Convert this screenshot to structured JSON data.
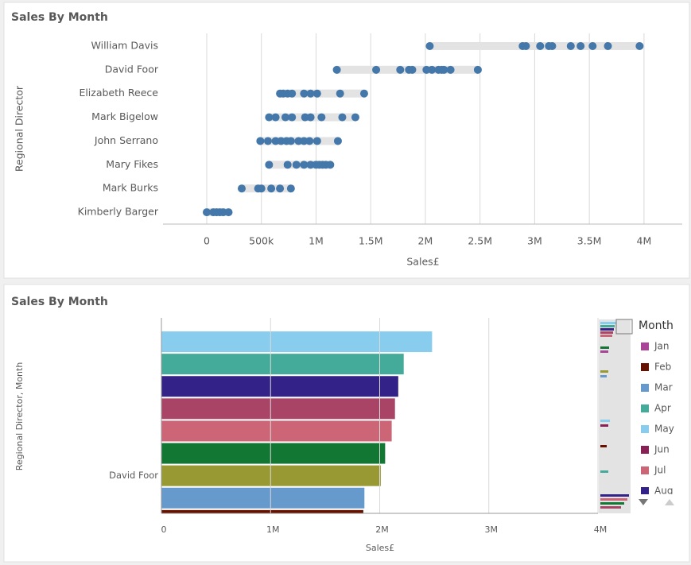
{
  "chart_data": [
    {
      "type": "dot-range",
      "title": "Sales By Month",
      "x_label": "Sales£",
      "y_label": "Regional Director",
      "color": "#4477aa",
      "range_color": "#e3e3e3",
      "categories": [
        "William Davis",
        "David Foor",
        "Elizabeth Reece",
        "Mark Bigelow",
        "John Serrano",
        "Mary Fikes",
        "Mark Burks",
        "Kimberly Barger"
      ],
      "values": [
        [
          2040000,
          2890000,
          2920000,
          3050000,
          3130000,
          3160000,
          3330000,
          3420000,
          3530000,
          3670000,
          3960000
        ],
        [
          1190000,
          1550000,
          1770000,
          1850000,
          1880000,
          2010000,
          2060000,
          2120000,
          2150000,
          2170000,
          2230000,
          2480000
        ],
        [
          670000,
          700000,
          740000,
          780000,
          890000,
          950000,
          1010000,
          1220000,
          1440000
        ],
        [
          570000,
          630000,
          720000,
          780000,
          900000,
          950000,
          1050000,
          1240000,
          1360000
        ],
        [
          490000,
          560000,
          630000,
          680000,
          730000,
          770000,
          840000,
          890000,
          940000,
          1010000,
          1200000
        ],
        [
          570000,
          740000,
          820000,
          890000,
          950000,
          1000000,
          1030000,
          1060000,
          1090000,
          1130000
        ],
        [
          320000,
          470000,
          500000,
          590000,
          670000,
          770000
        ],
        [
          0,
          60000,
          90000,
          120000,
          150000,
          200000
        ]
      ],
      "xlim": [
        -400000,
        4350000
      ],
      "xticks": [
        0,
        {
          "value": 500000,
          "label": "500k"
        },
        {
          "value": 1000000,
          "label": "1M"
        },
        {
          "value": 1500000,
          "label": "1.5M"
        },
        {
          "value": 2000000,
          "label": "2M"
        },
        {
          "value": 2500000,
          "label": "2.5M"
        },
        {
          "value": 3000000,
          "label": "3M"
        },
        {
          "value": 3500000,
          "label": "3.5M"
        },
        {
          "value": 4000000,
          "label": "4M"
        }
      ],
      "grid": true
    },
    {
      "type": "hbar",
      "title": "Sales By Month",
      "x_label": "Sales£",
      "y_label": "Regional Director, Month",
      "categories": [
        null,
        null,
        null,
        null,
        null,
        null,
        "David Foor",
        null,
        null
      ],
      "values": [
        2480000,
        2220000,
        2170000,
        2140000,
        2110000,
        2050000,
        2010000,
        1860000,
        1850000
      ],
      "colors": [
        "#88ccee",
        "#44aa99",
        "#332288",
        "#aa4466",
        "#cc6677",
        "#117733",
        "#999933",
        "#6699cc",
        "#661100"
      ],
      "xlim": [
        0,
        4000000
      ],
      "xticks": [
        0,
        {
          "value": 1000000,
          "label": "1M"
        },
        {
          "value": 2000000,
          "label": "2M"
        },
        {
          "value": 3000000,
          "label": "3M"
        },
        {
          "value": 4000000,
          "label": "4M"
        }
      ],
      "grid": true,
      "legend": {
        "title": "Month",
        "position": "right",
        "items": [
          {
            "name": "Jan",
            "color": "#aa4499"
          },
          {
            "name": "Feb",
            "color": "#661100"
          },
          {
            "name": "Mar",
            "color": "#6699cc"
          },
          {
            "name": "Apr",
            "color": "#44aa99"
          },
          {
            "name": "May",
            "color": "#88ccee"
          },
          {
            "name": "Jun",
            "color": "#882255"
          },
          {
            "name": "Jul",
            "color": "#cc6677"
          },
          {
            "name": "Aug",
            "color": "#332288"
          }
        ]
      }
    }
  ]
}
